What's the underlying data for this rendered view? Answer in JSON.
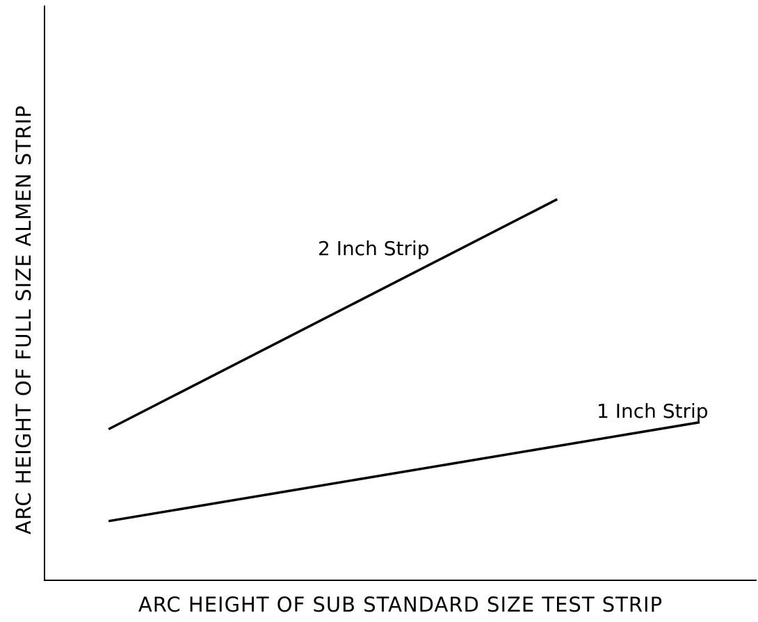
{
  "chart_data": {
    "type": "line",
    "title": "",
    "xlabel": "ARC HEIGHT OF SUB STANDARD SIZE TEST STRIP",
    "ylabel": "ARC HEIGHT OF FULL SIZE ALMEN STRIP",
    "xlim": [
      0,
      100
    ],
    "ylim": [
      0,
      100
    ],
    "grid": false,
    "axis_ticks": false,
    "series": [
      {
        "name": "2 Inch Strip",
        "x": [
          9,
          72
        ],
        "y": [
          26.3,
          66.3
        ]
      },
      {
        "name": "1 Inch Strip",
        "x": [
          9,
          92
        ],
        "y": [
          10.3,
          27.5
        ]
      }
    ],
    "colors": {
      "line": "#000000",
      "background": "#ffffff"
    }
  }
}
